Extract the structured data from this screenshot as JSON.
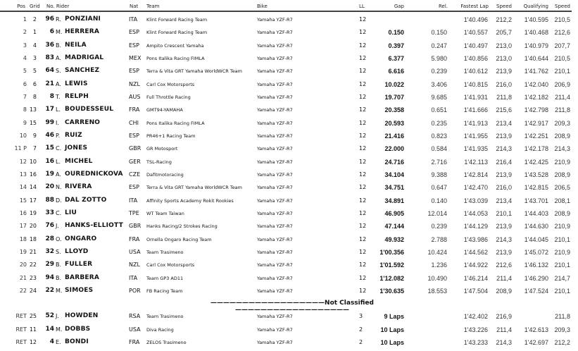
{
  "headers": {
    "pos": "Pos",
    "grid": "Grid",
    "no_rider": "No. Rider",
    "nat": "Nat",
    "team": "Team",
    "bike": "Bike",
    "ll": "LL",
    "gap": "Gap",
    "rel": "Rel.",
    "fastest_lap": "Fastest Lap",
    "speed": "Speed",
    "qualifying": "Qualifying",
    "qual_speed": "Speed"
  },
  "not_classified_label": "——————————————————Not Classified——————————————————",
  "classified": [
    {
      "pos": "1",
      "grid": "2",
      "no": "96",
      "initial": "R.",
      "surname": "PONZIANI",
      "nat": "ITA",
      "team": "Klint Forward Racing Team",
      "bike": "Yamaha YZF-R7",
      "ll": "12",
      "gap": "",
      "rel": "",
      "fastest": "1'40.496",
      "speed": "212,2",
      "qual": "1'40.595",
      "qspeed": "210,5"
    },
    {
      "pos": "2",
      "grid": "1",
      "no": "6",
      "initial": "M.",
      "surname": "HERRERA",
      "nat": "ESP",
      "team": "Klint Forward Racing Team",
      "bike": "Yamaha YZF-R7",
      "ll": "12",
      "gap": "0.150",
      "rel": "0.150",
      "fastest": "1'40.557",
      "speed": "205,7",
      "qual": "1'40.468",
      "qspeed": "212,6"
    },
    {
      "pos": "3",
      "grid": "4",
      "no": "36",
      "initial": "B.",
      "surname": "NEILA",
      "nat": "ESP",
      "team": "Ampito Crescent Yamaha",
      "bike": "Yamaha YZF-R7",
      "ll": "12",
      "gap": "0.397",
      "rel": "0.247",
      "fastest": "1'40.497",
      "speed": "213,0",
      "qual": "1'40.979",
      "qspeed": "207,7"
    },
    {
      "pos": "4",
      "grid": "3",
      "no": "83",
      "initial": "A.",
      "surname": "MADRIGAL",
      "nat": "MEX",
      "team": "Pons Italika Racing FIMLA",
      "bike": "Yamaha YZF-R7",
      "ll": "12",
      "gap": "6.377",
      "rel": "5.980",
      "fastest": "1'40.856",
      "speed": "213,0",
      "qual": "1'40.644",
      "qspeed": "210,5"
    },
    {
      "pos": "5",
      "grid": "5",
      "no": "64",
      "initial": "S.",
      "surname": "SANCHEZ",
      "nat": "ESP",
      "team": "Terra & Vita GRT Yamaha WorldWCR Team",
      "bike": "Yamaha YZF-R7",
      "ll": "12",
      "gap": "6.616",
      "rel": "0.239",
      "fastest": "1'40.612",
      "speed": "213,9",
      "qual": "1'41.762",
      "qspeed": "210,1"
    },
    {
      "pos": "6",
      "grid": "6",
      "no": "21",
      "initial": "A.",
      "surname": "LEWIS",
      "nat": "NZL",
      "team": "Carl Cox Motorsports",
      "bike": "Yamaha YZF-R7",
      "ll": "12",
      "gap": "10.022",
      "rel": "3.406",
      "fastest": "1'40.815",
      "speed": "216,0",
      "qual": "1'42.040",
      "qspeed": "206,9"
    },
    {
      "pos": "7",
      "grid": "8",
      "no": "8",
      "initial": "T.",
      "surname": "RELPH",
      "nat": "AUS",
      "team": "Full Throttle Racing",
      "bike": "Yamaha YZF-R7",
      "ll": "12",
      "gap": "19.707",
      "rel": "9.685",
      "fastest": "1'41.931",
      "speed": "211,8",
      "qual": "1'42.182",
      "qspeed": "211,4"
    },
    {
      "pos": "8",
      "grid": "13",
      "no": "17",
      "initial": "L.",
      "surname": "BOUDESSEUL",
      "nat": "FRA",
      "team": "GMT94-YAMAHA",
      "bike": "Yamaha YZF-R7",
      "ll": "12",
      "gap": "20.358",
      "rel": "0.651",
      "fastest": "1'41.666",
      "speed": "215,6",
      "qual": "1'42.798",
      "qspeed": "211,8"
    },
    {
      "pos": "9",
      "grid": "15",
      "no": "99",
      "initial": "I.",
      "surname": "CARRENO",
      "nat": "CHI",
      "team": "Pons Italika Racing FIMLA",
      "bike": "Yamaha YZF-R7",
      "ll": "12",
      "gap": "20.593",
      "rel": "0.235",
      "fastest": "1'41.913",
      "speed": "213,4",
      "qual": "1'42.917",
      "qspeed": "209,3"
    },
    {
      "pos": "10",
      "grid": "9",
      "no": "46",
      "initial": "P.",
      "surname": "RUIZ",
      "nat": "ESP",
      "team": "PR46+1 Racing Team",
      "bike": "Yamaha YZF-R7",
      "ll": "12",
      "gap": "21.416",
      "rel": "0.823",
      "fastest": "1'41.955",
      "speed": "213,9",
      "qual": "1'42.251",
      "qspeed": "208,9"
    },
    {
      "pos": "11 P",
      "grid": "7",
      "no": "15",
      "initial": "C.",
      "surname": "JONES",
      "nat": "GBR",
      "team": "GR Motosport",
      "bike": "Yamaha YZF-R7",
      "ll": "12",
      "gap": "22.000",
      "rel": "0.584",
      "fastest": "1'41.935",
      "speed": "214,3",
      "qual": "1'42.178",
      "qspeed": "214,3"
    },
    {
      "pos": "12",
      "grid": "10",
      "no": "16",
      "initial": "L.",
      "surname": "MICHEL",
      "nat": "GER",
      "team": "TSL-Racing",
      "bike": "Yamaha YZF-R7",
      "ll": "12",
      "gap": "24.716",
      "rel": "2.716",
      "fastest": "1'42.113",
      "speed": "216,4",
      "qual": "1'42.425",
      "qspeed": "210,9"
    },
    {
      "pos": "13",
      "grid": "16",
      "no": "19",
      "initial": "A.",
      "surname": "OUREDNICKOVA",
      "nat": "CZE",
      "team": "Dafitmotoracing",
      "bike": "Yamaha YZF-R7",
      "ll": "12",
      "gap": "34.104",
      "rel": "9.388",
      "fastest": "1'42.814",
      "speed": "213,9",
      "qual": "1'43.528",
      "qspeed": "208,9"
    },
    {
      "pos": "14",
      "grid": "14",
      "no": "20",
      "initial": "N.",
      "surname": "RIVERA",
      "nat": "ESP",
      "team": "Terra & Vita GRT Yamaha WorldWCR Team",
      "bike": "Yamaha YZF-R7",
      "ll": "12",
      "gap": "34.751",
      "rel": "0.647",
      "fastest": "1'42.470",
      "speed": "216,0",
      "qual": "1'42.815",
      "qspeed": "206,5"
    },
    {
      "pos": "15",
      "grid": "17",
      "no": "88",
      "initial": "D.",
      "surname": "DAL ZOTTO",
      "nat": "ITA",
      "team": "Affinity Sports Academy Rokit Rookies",
      "bike": "Yamaha YZF-R7",
      "ll": "12",
      "gap": "34.891",
      "rel": "0.140",
      "fastest": "1'43.039",
      "speed": "213,4",
      "qual": "1'43.701",
      "qspeed": "208,1"
    },
    {
      "pos": "16",
      "grid": "19",
      "no": "33",
      "initial": "C.",
      "surname": "LIU",
      "nat": "TPE",
      "team": "WT Team Taiwan",
      "bike": "Yamaha YZF-R7",
      "ll": "12",
      "gap": "46.905",
      "rel": "12.014",
      "fastest": "1'44.053",
      "speed": "210,1",
      "qual": "1'44.403",
      "qspeed": "208,9"
    },
    {
      "pos": "17",
      "grid": "20",
      "no": "76",
      "initial": "J.",
      "surname": "HANKS-ELLIOTT",
      "nat": "GBR",
      "team": "Hanks Racing/2 Strokes Racing",
      "bike": "Yamaha YZF-R7",
      "ll": "12",
      "gap": "47.144",
      "rel": "0.239",
      "fastest": "1'44.129",
      "speed": "213,9",
      "qual": "1'44.630",
      "qspeed": "210,9"
    },
    {
      "pos": "18",
      "grid": "18",
      "no": "28",
      "initial": "O.",
      "surname": "ONGARO",
      "nat": "FRA",
      "team": "Ornella Ongaro Racing Team",
      "bike": "Yamaha YZF-R7",
      "ll": "12",
      "gap": "49.932",
      "rel": "2.788",
      "fastest": "1'43.986",
      "speed": "214,3",
      "qual": "1'44.045",
      "qspeed": "210,1"
    },
    {
      "pos": "19",
      "grid": "21",
      "no": "32",
      "initial": "S.",
      "surname": "LLOYD",
      "nat": "USA",
      "team": "Team Trasimeno",
      "bike": "Yamaha YZF-R7",
      "ll": "12",
      "gap": "1'00.356",
      "rel": "10.424",
      "fastest": "1'44.562",
      "speed": "213,9",
      "qual": "1'45.072",
      "qspeed": "210,9"
    },
    {
      "pos": "20",
      "grid": "22",
      "no": "29",
      "initial": "B.",
      "surname": "FULLER",
      "nat": "NZL",
      "team": "Carl Cox Motorsports",
      "bike": "Yamaha YZF-R7",
      "ll": "12",
      "gap": "1'01.592",
      "rel": "1.236",
      "fastest": "1'44.922",
      "speed": "212,6",
      "qual": "1'46.132",
      "qspeed": "210,1"
    },
    {
      "pos": "21",
      "grid": "23",
      "no": "94",
      "initial": "B.",
      "surname": "BARBERA",
      "nat": "ITA",
      "team": "Team GP3 AD11",
      "bike": "Yamaha YZF-R7",
      "ll": "12",
      "gap": "1'12.082",
      "rel": "10.490",
      "fastest": "1'46.214",
      "speed": "211,4",
      "qual": "1'46.290",
      "qspeed": "214,7"
    },
    {
      "pos": "22",
      "grid": "24",
      "no": "22",
      "initial": "M.",
      "surname": "SIMOES",
      "nat": "POR",
      "team": "FB Racing Team",
      "bike": "Yamaha YZF-R7",
      "ll": "12",
      "gap": "1'30.635",
      "rel": "18.553",
      "fastest": "1'47.504",
      "speed": "208,9",
      "qual": "1'47.524",
      "qspeed": "210,1"
    }
  ],
  "not_classified": [
    {
      "pos": "RET",
      "grid": "25",
      "no": "52",
      "initial": "J.",
      "surname": "HOWDEN",
      "nat": "RSA",
      "team": "Team Trasimeno",
      "bike": "Yamaha YZF-R7",
      "ll": "3",
      "gap": "9 Laps",
      "rel": "",
      "fastest": "1'42.402",
      "speed": "216,9",
      "qual": "",
      "qspeed": "211,8"
    },
    {
      "pos": "RET",
      "grid": "11",
      "no": "14",
      "initial": "M.",
      "surname": "DOBBS",
      "nat": "USA",
      "team": "Diva Racing",
      "bike": "Yamaha YZF-R7",
      "ll": "2",
      "gap": "10 Laps",
      "rel": "",
      "fastest": "1'43.226",
      "speed": "211,4",
      "qual": "1'42.613",
      "qspeed": "209,3"
    },
    {
      "pos": "RET",
      "grid": "12",
      "no": "4",
      "initial": "E.",
      "surname": "BONDI",
      "nat": "FRA",
      "team": "ZELOS Trasimeno",
      "bike": "Yamaha YZF-R7",
      "ll": "2",
      "gap": "10 Laps",
      "rel": "",
      "fastest": "1'43.233",
      "speed": "214,3",
      "qual": "1'42.697",
      "qspeed": "212,2"
    }
  ]
}
